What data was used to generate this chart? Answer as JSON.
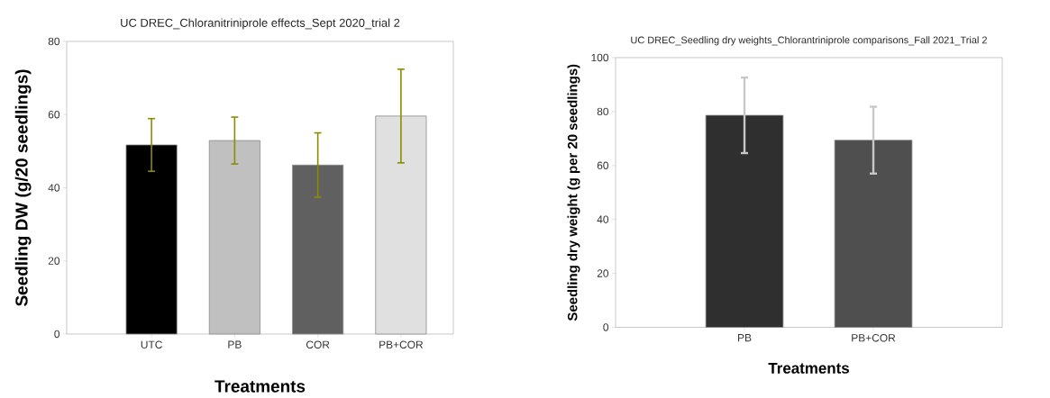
{
  "chart_data": [
    {
      "type": "bar",
      "title": "UC DREC_Chloranitriniprole effects_Sept 2020_trial 2",
      "xlabel": "Treatments",
      "ylabel": "Seedling DW (g/20 seedlings)",
      "categories": [
        "UTC",
        "PB",
        "COR",
        "PB+COR"
      ],
      "values": [
        51.7,
        52.9,
        46.2,
        59.6
      ],
      "errors": [
        7.2,
        6.4,
        8.8,
        12.8
      ],
      "colors": [
        "#000000",
        "#c0c0c0",
        "#606060",
        "#e0e0e0"
      ],
      "ylim": [
        0,
        80
      ],
      "yticks": [
        0,
        20,
        40,
        60,
        80
      ]
    },
    {
      "type": "bar",
      "title": "UC DREC_Seedling dry weights_Chlorantriniprole comparisons_Fall 2021_Trial 2",
      "xlabel": "Treatments",
      "ylabel": "Seedling dry weight (g per 20 seedlings)",
      "categories": [
        "PB",
        "PB+COR"
      ],
      "values": [
        78.6,
        69.4
      ],
      "errors": [
        14,
        12.4
      ],
      "colors": [
        "#2f2f2f",
        "#4f4f4f"
      ],
      "ylim": [
        0,
        100
      ],
      "yticks": [
        0,
        20,
        40,
        60,
        80,
        100
      ]
    }
  ]
}
